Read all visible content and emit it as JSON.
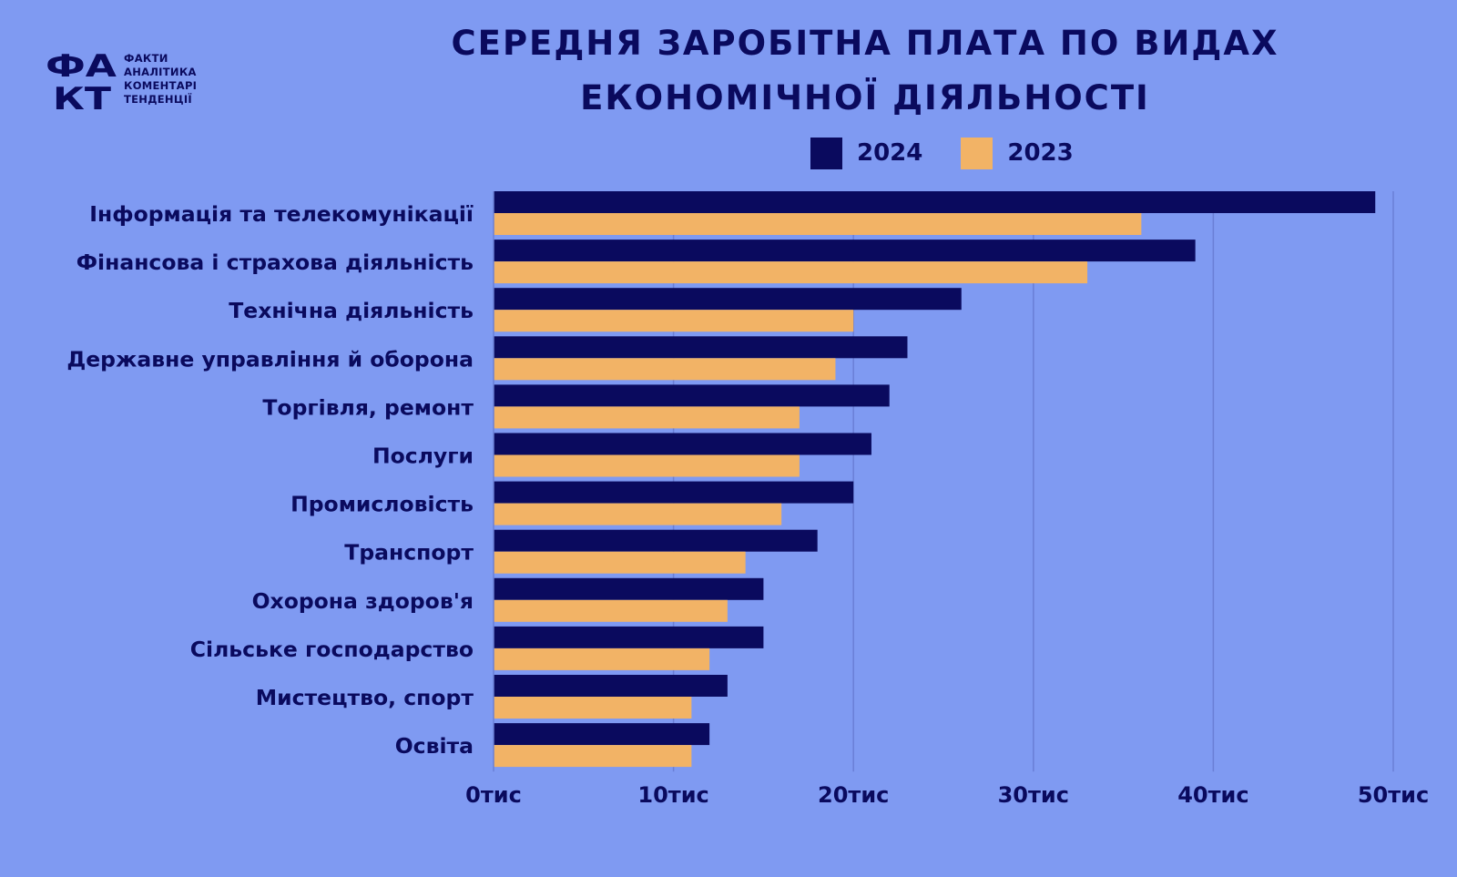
{
  "logo": {
    "mark": "ФАКТ",
    "lines": [
      "ФАКТИ",
      "АНАЛІТИКА",
      "КОМЕНТАРІ",
      "ТЕНДЕНЦІЇ"
    ]
  },
  "colors": {
    "background": "#7f9af2",
    "series_2024": "#0a0a5e",
    "series_2023": "#f2b366",
    "grid": "#6a7fd6",
    "text": "#0a0a5e"
  },
  "chart_data": {
    "type": "bar",
    "orientation": "horizontal",
    "title_lines": [
      "СЕРЕДНЯ ЗАРОБІТНА ПЛАТА ПО ВИДАХ",
      "ЕКОНОМІЧНОЇ ДІЯЛЬНОСТІ"
    ],
    "legend_position": "top",
    "grid": true,
    "categories": [
      "Інформація та телекомунікації",
      "Фінансова і страхова діяльність",
      "Технічна діяльність",
      "Державне управління й оборона",
      "Торгівля, ремонт",
      "Послуги",
      "Промисловість",
      "Транспорт",
      "Охорона здоров'я",
      "Сільське господарство",
      "Мистецтво, спорт",
      "Освіта"
    ],
    "series": [
      {
        "name": "2024",
        "color": "#0a0a5e",
        "values": [
          49,
          39,
          26,
          23,
          22,
          21,
          20,
          18,
          15,
          15,
          13,
          12
        ]
      },
      {
        "name": "2023",
        "color": "#f2b366",
        "values": [
          36,
          33,
          20,
          19,
          17,
          17,
          16,
          14,
          13,
          12,
          11,
          11
        ]
      }
    ],
    "xlim": [
      0,
      50
    ],
    "xticks": [
      0,
      10,
      20,
      30,
      40,
      50
    ],
    "xtick_labels": [
      "0тис",
      "10тис",
      "20тис",
      "30тис",
      "40тис",
      "50тис"
    ]
  }
}
